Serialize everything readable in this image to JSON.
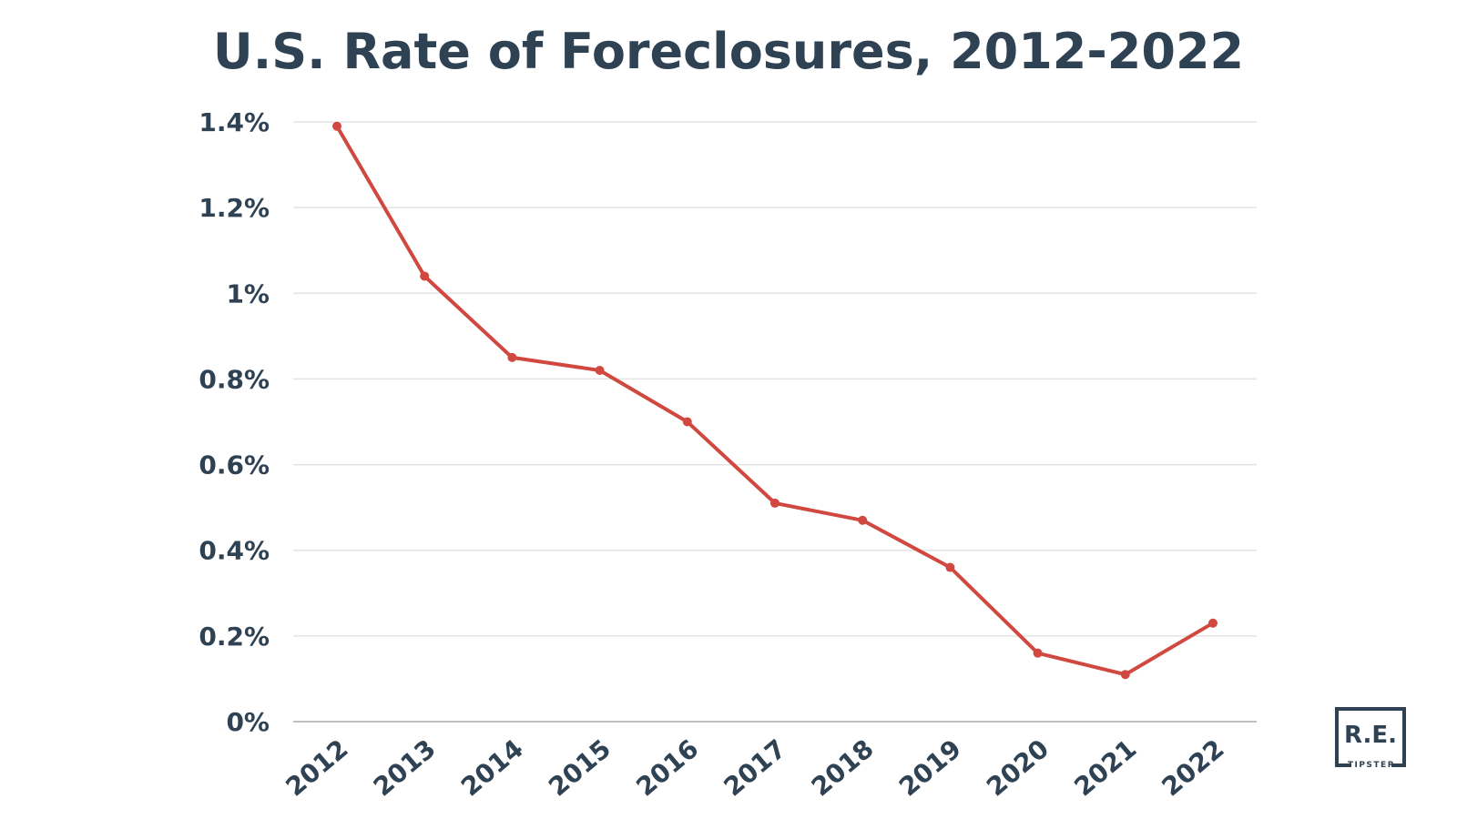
{
  "chart_data": {
    "type": "line",
    "title": "U.S. Rate of Foreclosures, 2012-2022",
    "xlabel": "",
    "ylabel": "",
    "categories": [
      "2012",
      "2013",
      "2014",
      "2015",
      "2016",
      "2017",
      "2018",
      "2019",
      "2020",
      "2021",
      "2022"
    ],
    "series": [
      {
        "values": [
          1.39,
          1.04,
          0.85,
          0.82,
          0.7,
          0.51,
          0.47,
          0.36,
          0.16,
          0.11,
          0.23
        ]
      }
    ],
    "ylim": [
      0,
      1.4
    ],
    "yticks": [
      {
        "value": 0,
        "label": "0%"
      },
      {
        "value": 0.2,
        "label": "0.2%"
      },
      {
        "value": 0.4,
        "label": "0.4%"
      },
      {
        "value": 0.6,
        "label": "0.6%"
      },
      {
        "value": 0.8,
        "label": "0.8%"
      },
      {
        "value": 1.0,
        "label": "1%"
      },
      {
        "value": 1.2,
        "label": "1.2%"
      },
      {
        "value": 1.4,
        "label": "1.4%"
      }
    ],
    "grid": true,
    "legend": "none",
    "colors": {
      "line": "#d0483f",
      "text": "#2e4254"
    }
  },
  "logo": {
    "main": "R.E.",
    "sub": "TIPSTER",
    "color": "#2e4254"
  }
}
